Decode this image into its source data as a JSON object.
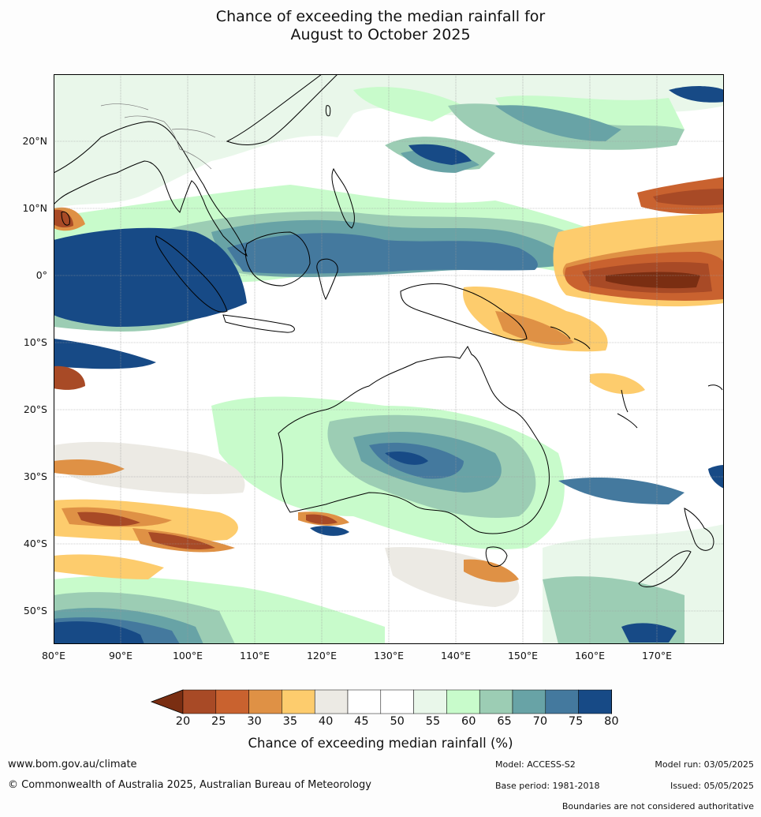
{
  "title": {
    "line1": "Chance of exceeding the median rainfall for",
    "line2": "August to October 2025"
  },
  "map": {
    "lat_labels": [
      "20°N",
      "10°N",
      "0°",
      "10°S",
      "20°S",
      "30°S",
      "40°S",
      "50°S"
    ],
    "lon_labels": [
      "80°E",
      "90°E",
      "100°E",
      "110°E",
      "120°E",
      "130°E",
      "140°E",
      "150°E",
      "160°E",
      "170°E"
    ],
    "extent": {
      "lon_min": 80,
      "lon_max": 180,
      "lat_min": -55,
      "lat_max": 30
    },
    "gridlines": true
  },
  "colorbar": {
    "tick_labels": [
      "20",
      "25",
      "30",
      "35",
      "40",
      "45",
      "50",
      "55",
      "60",
      "65",
      "70",
      "75",
      "80"
    ],
    "colors": [
      "#7a2e12",
      "#a84a26",
      "#c9622f",
      "#df9145",
      "#fdcc6d",
      "#eceae4",
      "#ffffff",
      "#ffffff",
      "#e9f7ea",
      "#c8fbcb",
      "#9ccdb4",
      "#68a3a6",
      "#44799e",
      "#174a86",
      "#0f3a73"
    ],
    "label": "Chance of exceeding median rainfall (%)"
  },
  "footer": {
    "website": "www.bom.gov.au/climate",
    "copyright": "© Commonwealth of Australia 2025, Australian Bureau of Meteorology",
    "model": "Model: ACCESS-S2",
    "base_period": "Base period: 1981-2018",
    "model_run": "Model run: 03/05/2025",
    "issued": "Issued: 05/05/2025",
    "disclaimer": "Boundaries are not considered authoritative"
  }
}
